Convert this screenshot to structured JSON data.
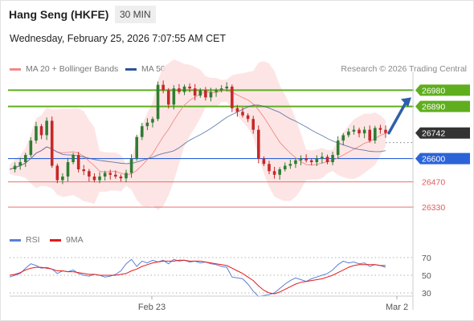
{
  "header": {
    "title": "Hang Seng (HKFE)",
    "timeframe": "30 MIN",
    "datetime": "Wednesday, February 25, 2026 7:07:55 AM CET"
  },
  "legend": {
    "bollinger": {
      "label": "MA 20 + Bollinger Bands",
      "color": "#f08a8a"
    },
    "ma50": {
      "label": "MA 50",
      "color": "#2f5597"
    },
    "rsi": {
      "label": "RSI",
      "color": "#5b7fd6"
    },
    "ma9": {
      "label": "9MA",
      "color": "#e31b1b"
    }
  },
  "research_credit": "Research © 2026 Trading Central",
  "chart_data": {
    "type": "candlestick",
    "price_ylim": [
      26250,
      27080
    ],
    "last_price": {
      "value": 26742,
      "label": "26742"
    },
    "levels": [
      {
        "value": 26980,
        "label": "26980",
        "kind": "resistance",
        "color": "#5fae1e"
      },
      {
        "value": 26890,
        "label": "26890",
        "kind": "resistance",
        "color": "#5fae1e"
      },
      {
        "value": 26600,
        "label": "26600",
        "kind": "pivot",
        "color": "#2b63d9"
      },
      {
        "value": 26470,
        "label": "26470",
        "kind": "support",
        "color": "#e45b5b"
      },
      {
        "value": 26330,
        "label": "26330",
        "kind": "support",
        "color": "#e45b5b"
      }
    ],
    "target_arrow": {
      "from": 26742,
      "to": 26940,
      "color": "#2f5fa8"
    },
    "x_ticks": [
      "Feb 23",
      "Mar 2"
    ],
    "price_path": [
      26540,
      26560,
      26580,
      26620,
      26700,
      26780,
      26730,
      26810,
      26560,
      26480,
      26500,
      26580,
      26620,
      26540,
      26530,
      26500,
      26480,
      26500,
      26520,
      26510,
      26500,
      26490,
      26520,
      26600,
      26720,
      26780,
      26800,
      26820,
      27010,
      26980,
      26900,
      26990,
      26970,
      27000,
      26990,
      26950,
      26980,
      26940,
      26970,
      26980,
      26990,
      27000,
      26880,
      26860,
      26840,
      26820,
      26760,
      26600,
      26570,
      26530,
      26510,
      26540,
      26560,
      26570,
      26590,
      26600,
      26590,
      26580,
      26600,
      26610,
      26580,
      26620,
      26700,
      26730,
      26750,
      26760,
      26740,
      26760,
      26700,
      26770,
      26760,
      26742
    ],
    "rsi": {
      "ylim": [
        20,
        80
      ],
      "ticks": [
        70,
        50,
        30
      ],
      "tick_labels": [
        "70",
        "50",
        "30"
      ],
      "rsi_values": [
        48,
        50,
        52,
        58,
        63,
        61,
        58,
        59,
        57,
        52,
        55,
        54,
        56,
        52,
        50,
        49,
        51,
        50,
        48,
        49,
        51,
        55,
        63,
        68,
        60,
        66,
        64,
        67,
        65,
        67,
        63,
        68,
        66,
        67,
        65,
        66,
        64,
        65,
        63,
        62,
        60,
        59,
        48,
        47,
        46,
        40,
        32,
        26,
        27,
        28,
        30,
        35,
        40,
        44,
        47,
        45,
        43,
        46,
        48,
        50,
        52,
        56,
        62,
        66,
        64,
        65,
        63,
        64,
        60,
        62,
        61,
        59
      ],
      "ma9_values": [
        50,
        51,
        53,
        56,
        58,
        59,
        59,
        58,
        57,
        55,
        55,
        54,
        54,
        53,
        52,
        51,
        51,
        50,
        50,
        50,
        50,
        51,
        52,
        55,
        57,
        60,
        62,
        64,
        65,
        66,
        66,
        66,
        67,
        67,
        66,
        66,
        66,
        65,
        64,
        63,
        62,
        61,
        58,
        55,
        52,
        48,
        44,
        38,
        33,
        30,
        29,
        31,
        34,
        37,
        40,
        42,
        43,
        44,
        45,
        46,
        48,
        50,
        53,
        56,
        59,
        61,
        62,
        62,
        62,
        62,
        61,
        61
      ]
    }
  }
}
